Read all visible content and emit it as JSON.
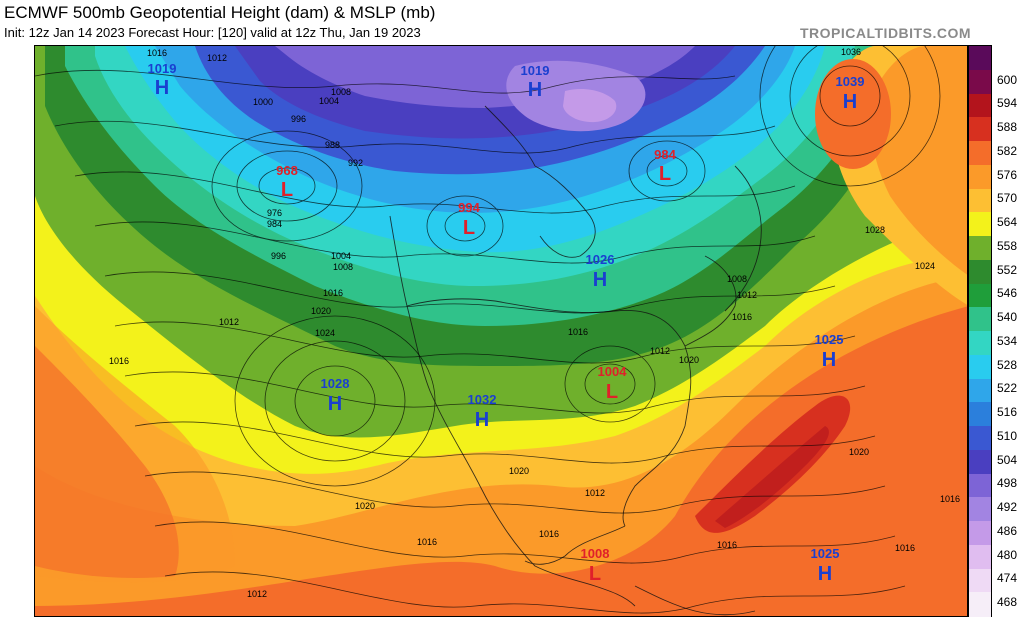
{
  "header": {
    "title": "ECMWF 500mb Geopotential Height (dam) & MSLP (mb)",
    "subtitle": "Init: 12z Jan 14 2023   Forecast Hour: [120]   valid at 12z Thu, Jan 19 2023",
    "site": "TROPICALTIDBITS.COM"
  },
  "colorbar": {
    "labels": [
      "600",
      "594",
      "588",
      "582",
      "576",
      "570",
      "564",
      "558",
      "552",
      "546",
      "540",
      "534",
      "528",
      "522",
      "516",
      "510",
      "504",
      "498",
      "492",
      "486",
      "480",
      "474",
      "468"
    ],
    "colors": [
      "#7a0a4a",
      "#b3141c",
      "#d7301f",
      "#f46d2a",
      "#fb9a29",
      "#fdbf33",
      "#f3f21b",
      "#6fb02c",
      "#2e8b2e",
      "#1f9e3a",
      "#30c28a",
      "#33d6c3",
      "#29ccef",
      "#2fa6ea",
      "#2b7fdc",
      "#3a58d2",
      "#4a3fc0",
      "#7d64d6",
      "#a284e2",
      "#c49ae8",
      "#e0bdf0",
      "#efdaf5",
      "#f6eef8"
    ]
  },
  "pressure_centers": [
    {
      "type": "H",
      "value": "1019"
    },
    {
      "type": "H",
      "value": "1019"
    },
    {
      "type": "H",
      "value": "1039"
    },
    {
      "type": "L",
      "value": "968"
    },
    {
      "type": "L",
      "value": "994"
    },
    {
      "type": "L",
      "value": "984"
    },
    {
      "type": "H",
      "value": "1026"
    },
    {
      "type": "H",
      "value": "1028"
    },
    {
      "type": "H",
      "value": "1032"
    },
    {
      "type": "L",
      "value": "1004"
    },
    {
      "type": "H",
      "value": "1025"
    },
    {
      "type": "L",
      "value": "1008"
    },
    {
      "type": "H",
      "value": "1025"
    }
  ],
  "isobar_labels": [
    "1016",
    "1012",
    "1000",
    "996",
    "1004",
    "1008",
    "988",
    "992",
    "976",
    "984",
    "996",
    "1004",
    "1008",
    "1016",
    "1020",
    "1024",
    "1012",
    "1016",
    "1020",
    "1028",
    "1024",
    "1020",
    "1036",
    "1008",
    "1012",
    "1016",
    "1016",
    "1016",
    "1016",
    "1012",
    "1016",
    "1016",
    "1012",
    "1020",
    "1012",
    "1016",
    "1020"
  ]
}
